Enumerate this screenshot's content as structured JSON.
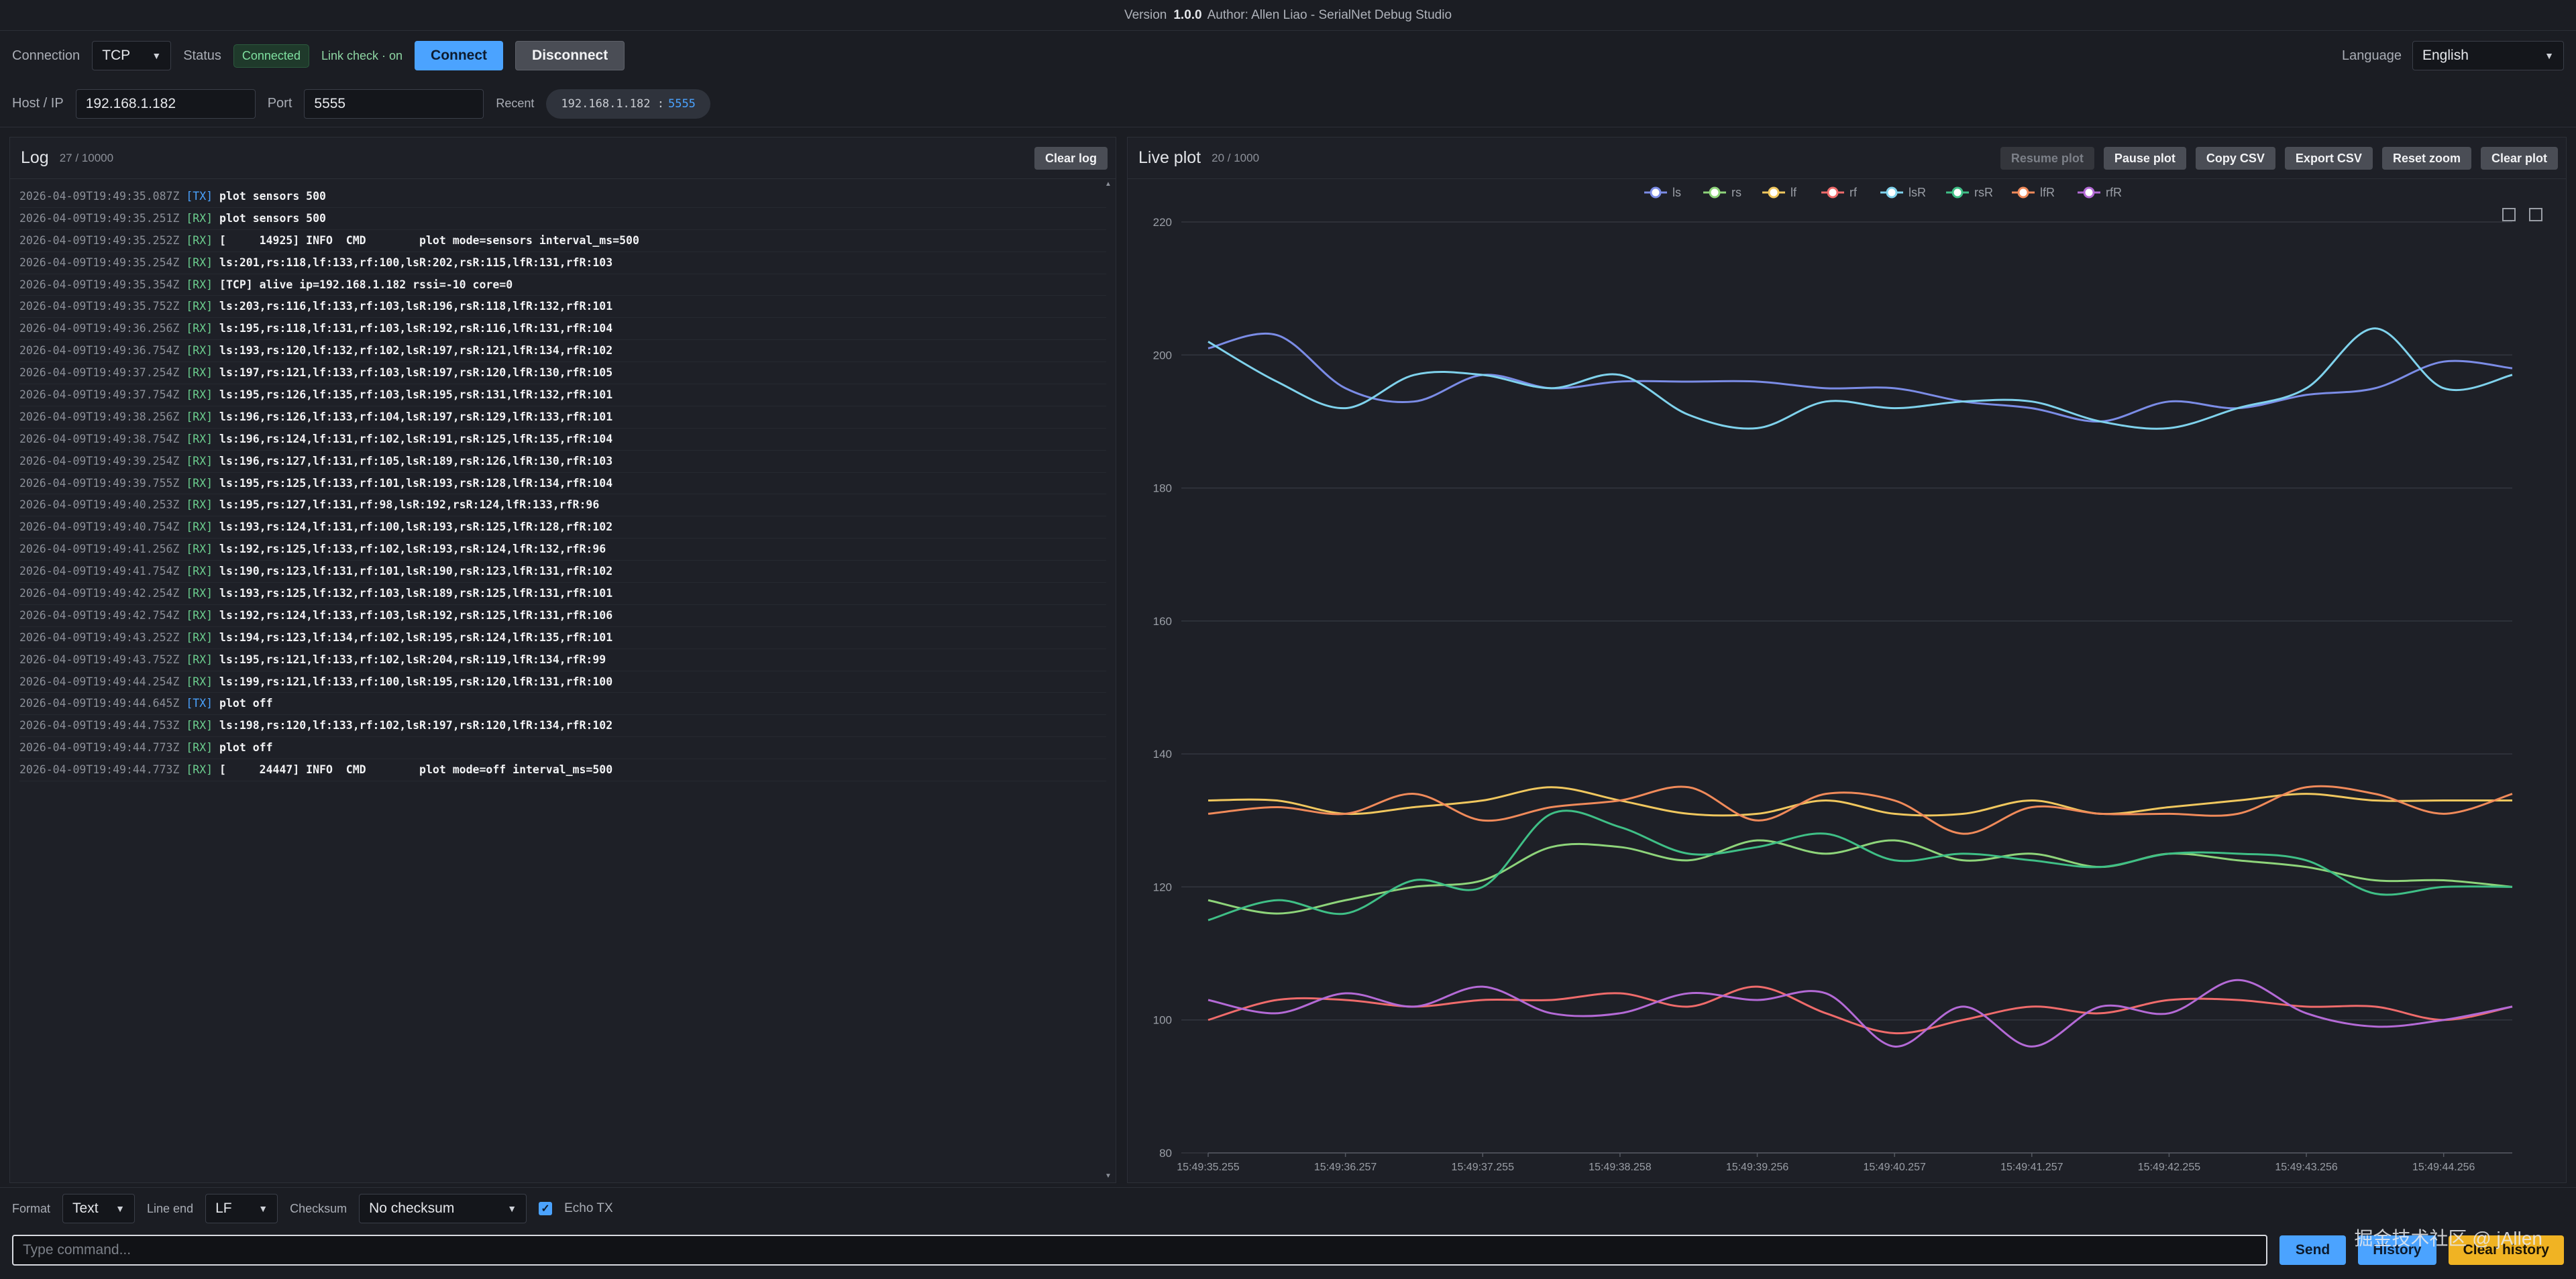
{
  "topbar": {
    "version_label": "Version",
    "version": "1.0.0",
    "author": "Author: Allen Liao - SerialNet Debug Studio"
  },
  "connection": {
    "label": "Connection",
    "type": "TCP",
    "status_label": "Status",
    "status": "Connected",
    "link_check": "Link check · on",
    "connect": "Connect",
    "disconnect": "Disconnect",
    "host_label": "Host / IP",
    "host": "192.168.1.182",
    "port_label": "Port",
    "port": "5555",
    "recent_label": "Recent",
    "recent_host": "192.168.1.182 :",
    "recent_port": "5555"
  },
  "language": {
    "label": "Language",
    "value": "English"
  },
  "log": {
    "title": "Log",
    "count": "27 / 10000",
    "clear": "Clear log",
    "lines": [
      {
        "ts": "2026-04-09T19:49:35.087Z",
        "tag": "[TX]",
        "msg": "plot sensors 500"
      },
      {
        "ts": "2026-04-09T19:49:35.251Z",
        "tag": "[RX]",
        "msg": "plot sensors 500"
      },
      {
        "ts": "2026-04-09T19:49:35.252Z",
        "tag": "[RX]",
        "msg": "[     14925] INFO  CMD        plot mode=sensors interval_ms=500"
      },
      {
        "ts": "2026-04-09T19:49:35.254Z",
        "tag": "[RX]",
        "msg": "ls:201,rs:118,lf:133,rf:100,lsR:202,rsR:115,lfR:131,rfR:103"
      },
      {
        "ts": "2026-04-09T19:49:35.354Z",
        "tag": "[RX]",
        "msg": "[TCP] alive ip=192.168.1.182 rssi=-10 core=0"
      },
      {
        "ts": "2026-04-09T19:49:35.752Z",
        "tag": "[RX]",
        "msg": "ls:203,rs:116,lf:133,rf:103,lsR:196,rsR:118,lfR:132,rfR:101"
      },
      {
        "ts": "2026-04-09T19:49:36.256Z",
        "tag": "[RX]",
        "msg": "ls:195,rs:118,lf:131,rf:103,lsR:192,rsR:116,lfR:131,rfR:104"
      },
      {
        "ts": "2026-04-09T19:49:36.754Z",
        "tag": "[RX]",
        "msg": "ls:193,rs:120,lf:132,rf:102,lsR:197,rsR:121,lfR:134,rfR:102"
      },
      {
        "ts": "2026-04-09T19:49:37.254Z",
        "tag": "[RX]",
        "msg": "ls:197,rs:121,lf:133,rf:103,lsR:197,rsR:120,lfR:130,rfR:105"
      },
      {
        "ts": "2026-04-09T19:49:37.754Z",
        "tag": "[RX]",
        "msg": "ls:195,rs:126,lf:135,rf:103,lsR:195,rsR:131,lfR:132,rfR:101"
      },
      {
        "ts": "2026-04-09T19:49:38.256Z",
        "tag": "[RX]",
        "msg": "ls:196,rs:126,lf:133,rf:104,lsR:197,rsR:129,lfR:133,rfR:101"
      },
      {
        "ts": "2026-04-09T19:49:38.754Z",
        "tag": "[RX]",
        "msg": "ls:196,rs:124,lf:131,rf:102,lsR:191,rsR:125,lfR:135,rfR:104"
      },
      {
        "ts": "2026-04-09T19:49:39.254Z",
        "tag": "[RX]",
        "msg": "ls:196,rs:127,lf:131,rf:105,lsR:189,rsR:126,lfR:130,rfR:103"
      },
      {
        "ts": "2026-04-09T19:49:39.755Z",
        "tag": "[RX]",
        "msg": "ls:195,rs:125,lf:133,rf:101,lsR:193,rsR:128,lfR:134,rfR:104"
      },
      {
        "ts": "2026-04-09T19:49:40.253Z",
        "tag": "[RX]",
        "msg": "ls:195,rs:127,lf:131,rf:98,lsR:192,rsR:124,lfR:133,rfR:96"
      },
      {
        "ts": "2026-04-09T19:49:40.754Z",
        "tag": "[RX]",
        "msg": "ls:193,rs:124,lf:131,rf:100,lsR:193,rsR:125,lfR:128,rfR:102"
      },
      {
        "ts": "2026-04-09T19:49:41.256Z",
        "tag": "[RX]",
        "msg": "ls:192,rs:125,lf:133,rf:102,lsR:193,rsR:124,lfR:132,rfR:96"
      },
      {
        "ts": "2026-04-09T19:49:41.754Z",
        "tag": "[RX]",
        "msg": "ls:190,rs:123,lf:131,rf:101,lsR:190,rsR:123,lfR:131,rfR:102"
      },
      {
        "ts": "2026-04-09T19:49:42.254Z",
        "tag": "[RX]",
        "msg": "ls:193,rs:125,lf:132,rf:103,lsR:189,rsR:125,lfR:131,rfR:101"
      },
      {
        "ts": "2026-04-09T19:49:42.754Z",
        "tag": "[RX]",
        "msg": "ls:192,rs:124,lf:133,rf:103,lsR:192,rsR:125,lfR:131,rfR:106"
      },
      {
        "ts": "2026-04-09T19:49:43.252Z",
        "tag": "[RX]",
        "msg": "ls:194,rs:123,lf:134,rf:102,lsR:195,rsR:124,lfR:135,rfR:101"
      },
      {
        "ts": "2026-04-09T19:49:43.752Z",
        "tag": "[RX]",
        "msg": "ls:195,rs:121,lf:133,rf:102,lsR:204,rsR:119,lfR:134,rfR:99"
      },
      {
        "ts": "2026-04-09T19:49:44.254Z",
        "tag": "[RX]",
        "msg": "ls:199,rs:121,lf:133,rf:100,lsR:195,rsR:120,lfR:131,rfR:100"
      },
      {
        "ts": "2026-04-09T19:49:44.645Z",
        "tag": "[TX]",
        "msg": "plot off"
      },
      {
        "ts": "2026-04-09T19:49:44.753Z",
        "tag": "[RX]",
        "msg": "ls:198,rs:120,lf:133,rf:102,lsR:197,rsR:120,lfR:134,rfR:102"
      },
      {
        "ts": "2026-04-09T19:49:44.773Z",
        "tag": "[RX]",
        "msg": "plot off"
      },
      {
        "ts": "2026-04-09T19:49:44.773Z",
        "tag": "[RX]",
        "msg": "[     24447] INFO  CMD        plot mode=off interval_ms=500"
      }
    ]
  },
  "plot": {
    "title": "Live plot",
    "count": "20 / 1000",
    "buttons": {
      "resume": "Resume plot",
      "pause": "Pause plot",
      "copy": "Copy CSV",
      "export": "Export CSV",
      "reset_zoom": "Reset zoom",
      "clear": "Clear plot"
    }
  },
  "chart_data": {
    "type": "line",
    "x": [
      "15:49:35.255",
      "15:49:35.752",
      "15:49:36.257",
      "15:49:36.754",
      "15:49:37.255",
      "15:49:37.754",
      "15:49:38.258",
      "15:49:38.754",
      "15:49:39.256",
      "15:49:39.755",
      "15:49:40.257",
      "15:49:40.754",
      "15:49:41.257",
      "15:49:41.754",
      "15:49:42.255",
      "15:49:42.754",
      "15:49:43.256",
      "15:49:43.752",
      "15:49:44.256",
      "15:49:44.753"
    ],
    "x_tick_labels": [
      "15:49:35.255",
      "15:49:36.257",
      "15:49:37.255",
      "15:49:38.258",
      "15:49:39.256",
      "15:49:40.257",
      "15:49:41.257",
      "15:49:42.255",
      "15:49:43.256",
      "15:49:44.256"
    ],
    "ylim": [
      80,
      220
    ],
    "y_ticks": [
      80,
      100,
      120,
      140,
      160,
      180,
      200,
      220
    ],
    "grid": true,
    "legend": "top-center",
    "series": [
      {
        "name": "ls",
        "color": "#7b8ce6",
        "values": [
          201,
          203,
          195,
          193,
          197,
          195,
          196,
          196,
          196,
          195,
          195,
          193,
          192,
          190,
          193,
          192,
          194,
          195,
          199,
          198
        ]
      },
      {
        "name": "rs",
        "color": "#8ed47a",
        "values": [
          118,
          116,
          118,
          120,
          121,
          126,
          126,
          124,
          127,
          125,
          127,
          124,
          125,
          123,
          125,
          124,
          123,
          121,
          121,
          120
        ]
      },
      {
        "name": "lf",
        "color": "#f0c75e",
        "values": [
          133,
          133,
          131,
          132,
          133,
          135,
          133,
          131,
          131,
          133,
          131,
          131,
          133,
          131,
          132,
          133,
          134,
          133,
          133,
          133
        ]
      },
      {
        "name": "rf",
        "color": "#ef6b6b",
        "values": [
          100,
          103,
          103,
          102,
          103,
          103,
          104,
          102,
          105,
          101,
          98,
          100,
          102,
          101,
          103,
          103,
          102,
          102,
          100,
          102
        ]
      },
      {
        "name": "lsR",
        "color": "#7fd2ec",
        "values": [
          202,
          196,
          192,
          197,
          197,
          195,
          197,
          191,
          189,
          193,
          192,
          193,
          193,
          190,
          189,
          192,
          195,
          204,
          195,
          197
        ]
      },
      {
        "name": "rsR",
        "color": "#3fbf86",
        "values": [
          115,
          118,
          116,
          121,
          120,
          131,
          129,
          125,
          126,
          128,
          124,
          125,
          124,
          123,
          125,
          125,
          124,
          119,
          120,
          120
        ]
      },
      {
        "name": "lfR",
        "color": "#f08a5a",
        "values": [
          131,
          132,
          131,
          134,
          130,
          132,
          133,
          135,
          130,
          134,
          133,
          128,
          132,
          131,
          131,
          131,
          135,
          134,
          131,
          134
        ]
      },
      {
        "name": "rfR",
        "color": "#b46ad6",
        "values": [
          103,
          101,
          104,
          102,
          105,
          101,
          101,
          104,
          103,
          104,
          96,
          102,
          96,
          102,
          101,
          106,
          101,
          99,
          100,
          102
        ]
      }
    ]
  },
  "bottom": {
    "format_label": "Format",
    "format": "Text",
    "lineend_label": "Line end",
    "lineend": "LF",
    "checksum_label": "Checksum",
    "checksum": "No checksum",
    "echo_label": "Echo TX",
    "placeholder": "Type command...",
    "send": "Send",
    "history": "History",
    "clear_history": "Clear history",
    "watermark": "掘金技术社区 @ jAllen"
  }
}
